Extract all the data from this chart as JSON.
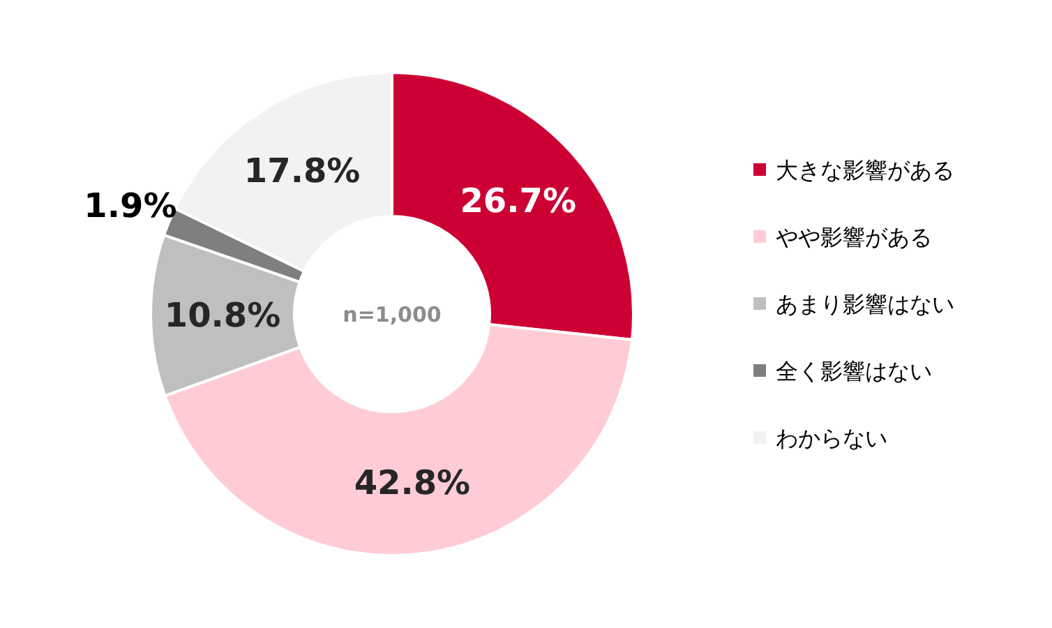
{
  "chart_data": {
    "type": "donut",
    "categories": [
      "大きな影響がある",
      "やや影響がある",
      "あまり影響はない",
      "全く影響はない",
      "わからない"
    ],
    "values": [
      26.7,
      42.8,
      10.8,
      1.9,
      17.8
    ],
    "colors": [
      "#cc0033",
      "#ffccd5",
      "#bfbfbf",
      "#7f7f7f",
      "#f2f2f2"
    ],
    "value_labels": [
      "26.7%",
      "42.8%",
      "10.8%",
      "1.9%",
      "17.8%"
    ],
    "legend": "right",
    "annotations": [
      "n=1,000"
    ]
  }
}
